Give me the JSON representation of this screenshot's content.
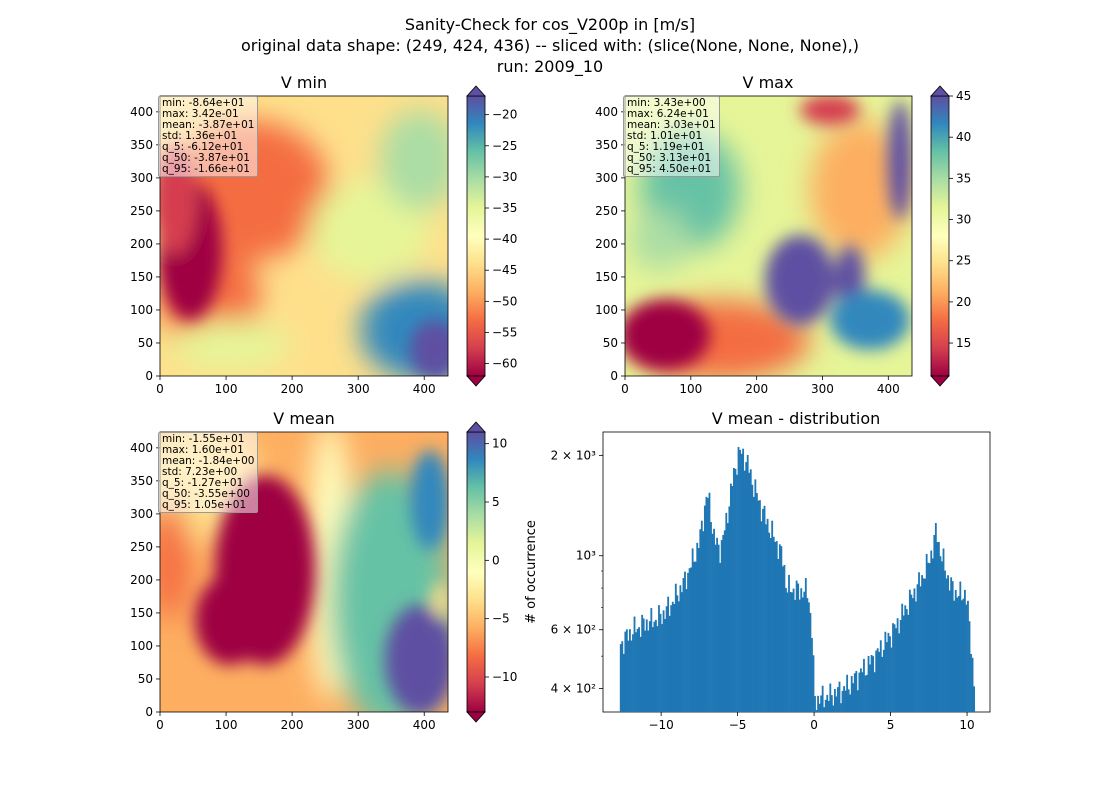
{
  "suptitle": [
    "Sanity-Check for cos_V200p in [m/s]",
    "original data shape: (249, 424, 436) -- sliced with: (slice(None, None, None),)",
    "run: 2009_10"
  ],
  "colors": {
    "bar": "#1f77b4"
  },
  "chart_data": [
    {
      "type": "heatmap",
      "title": "V min",
      "colormap": "Spectral",
      "xlim": [
        0,
        436
      ],
      "ylim": [
        0,
        424
      ],
      "xticks": [
        0,
        100,
        200,
        300,
        400
      ],
      "yticks": [
        0,
        50,
        100,
        150,
        200,
        250,
        300,
        350,
        400
      ],
      "colorbar": {
        "min": -62,
        "max": -17,
        "ticks": [
          -20,
          -25,
          -30,
          -35,
          -40,
          -45,
          -50,
          -55,
          -60
        ],
        "extend": "both"
      },
      "stats": [
        "min: -8.64e+01",
        "max: 3.42e-01",
        "mean: -3.87e+01",
        "std: 1.36e+01",
        "q_5: -6.12e+01",
        "q_50: -3.87e+01",
        "q_95: -1.66e+01"
      ]
    },
    {
      "type": "heatmap",
      "title": "V max",
      "colormap": "Spectral",
      "xlim": [
        0,
        436
      ],
      "ylim": [
        0,
        424
      ],
      "xticks": [
        0,
        100,
        200,
        300,
        400
      ],
      "yticks": [
        0,
        50,
        100,
        150,
        200,
        250,
        300,
        350,
        400
      ],
      "colorbar": {
        "min": 11,
        "max": 45,
        "ticks": [
          45,
          40,
          35,
          30,
          25,
          20,
          15
        ],
        "extend": "both"
      },
      "stats": [
        "min: 3.43e+00",
        "max: 6.24e+01",
        "mean: 3.03e+01",
        "std: 1.01e+01",
        "q_5: 1.19e+01",
        "q_50: 3.13e+01",
        "q_95: 4.50e+01"
      ]
    },
    {
      "type": "heatmap",
      "title": "V mean",
      "colormap": "Spectral",
      "xlim": [
        0,
        436
      ],
      "ylim": [
        0,
        424
      ],
      "xticks": [
        0,
        100,
        200,
        300,
        400
      ],
      "yticks": [
        0,
        50,
        100,
        150,
        200,
        250,
        300,
        350,
        400
      ],
      "colorbar": {
        "min": -13,
        "max": 11,
        "ticks": [
          10,
          5,
          0,
          -5,
          -10
        ],
        "extend": "both"
      },
      "stats": [
        "min: -1.55e+01",
        "max: 1.60e+01",
        "mean: -1.84e+00",
        "std: 7.23e+00",
        "q_5: -1.27e+01",
        "q_50: -3.55e+00",
        "q_95: 1.05e+01"
      ]
    },
    {
      "type": "bar",
      "title": "V mean - distribution",
      "ylabel": "# of occurrence",
      "yscale": "log",
      "xlim": [
        -13.8,
        11.5
      ],
      "ylim": [
        340,
        2350
      ],
      "xticks": [
        -10,
        -5,
        0,
        5,
        10
      ],
      "yticks": [
        {
          "value": 400,
          "label": "4 × 10²"
        },
        {
          "value": 600,
          "label": "6 × 10²"
        },
        {
          "value": 1000,
          "label": "10³"
        },
        {
          "value": 2000,
          "label": "2 × 10³"
        }
      ],
      "bin_start": -12.7,
      "bin_width": 0.1,
      "profile": [
        [
          -12.7,
          540
        ],
        [
          -12.4,
          560
        ],
        [
          -12.0,
          590
        ],
        [
          -11.5,
          610
        ],
        [
          -11.0,
          630
        ],
        [
          -10.5,
          640
        ],
        [
          -10.0,
          660
        ],
        [
          -9.5,
          700
        ],
        [
          -9.0,
          760
        ],
        [
          -8.5,
          830
        ],
        [
          -8.0,
          950
        ],
        [
          -7.5,
          1100
        ],
        [
          -7.2,
          1350
        ],
        [
          -7.0,
          1530
        ],
        [
          -6.8,
          1400
        ],
        [
          -6.6,
          1170
        ],
        [
          -6.4,
          1080
        ],
        [
          -6.1,
          1050
        ],
        [
          -5.8,
          1220
        ],
        [
          -5.5,
          1500
        ],
        [
          -5.2,
          1800
        ],
        [
          -4.9,
          2050
        ],
        [
          -4.6,
          2000
        ],
        [
          -4.3,
          1850
        ],
        [
          -4.0,
          1650
        ],
        [
          -3.6,
          1450
        ],
        [
          -3.2,
          1300
        ],
        [
          -2.8,
          1180
        ],
        [
          -2.4,
          1080
        ],
        [
          -2.0,
          960
        ],
        [
          -1.8,
          800
        ],
        [
          -1.2,
          790
        ],
        [
          -0.4,
          780
        ],
        [
          -0.1,
          560
        ],
        [
          0.0,
          370
        ],
        [
          0.5,
          375
        ],
        [
          1.0,
          380
        ],
        [
          1.5,
          390
        ],
        [
          2.0,
          400
        ],
        [
          2.5,
          420
        ],
        [
          3.0,
          445
        ],
        [
          3.5,
          470
        ],
        [
          4.0,
          500
        ],
        [
          4.5,
          540
        ],
        [
          5.0,
          580
        ],
        [
          5.5,
          630
        ],
        [
          6.0,
          700
        ],
        [
          6.5,
          770
        ],
        [
          7.0,
          850
        ],
        [
          7.5,
          960
        ],
        [
          7.8,
          1080
        ],
        [
          8.0,
          1200
        ],
        [
          8.2,
          1050
        ],
        [
          8.6,
          900
        ],
        [
          9.0,
          800
        ],
        [
          9.5,
          760
        ],
        [
          9.9,
          780
        ],
        [
          10.1,
          650
        ],
        [
          10.3,
          520
        ],
        [
          10.5,
          380
        ]
      ]
    }
  ]
}
